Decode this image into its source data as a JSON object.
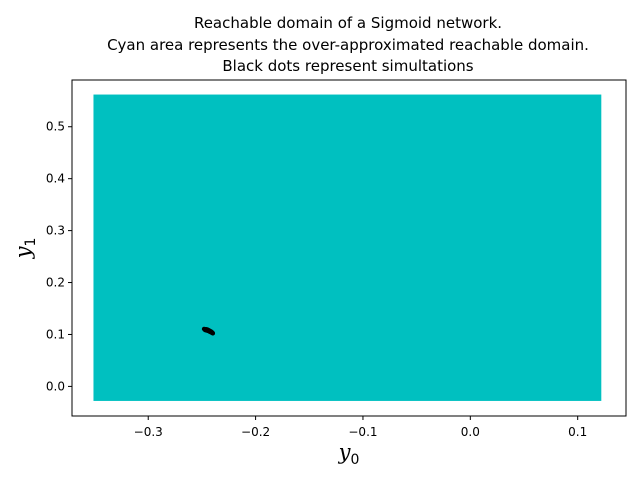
{
  "chart_data": {
    "type": "scatter",
    "title_lines": [
      "Reachable domain of a Sigmoid network.",
      "Cyan area represents the over-approximated reachable domain.",
      "Black dots represent simultations"
    ],
    "xlabel": {
      "base": "y",
      "sub": "0"
    },
    "ylabel": {
      "base": "y",
      "sub": "1"
    },
    "xlim": [
      -0.371,
      0.145
    ],
    "ylim": [
      -0.057,
      0.59
    ],
    "xticks": [
      {
        "value": -0.3,
        "label": "−0.3"
      },
      {
        "value": -0.2,
        "label": "−0.2"
      },
      {
        "value": -0.1,
        "label": "−0.1"
      },
      {
        "value": 0.0,
        "label": "0.0"
      },
      {
        "value": 0.1,
        "label": "0.1"
      }
    ],
    "yticks": [
      {
        "value": 0.0,
        "label": "0.0"
      },
      {
        "value": 0.1,
        "label": "0.1"
      },
      {
        "value": 0.2,
        "label": "0.2"
      },
      {
        "value": 0.3,
        "label": "0.3"
      },
      {
        "value": 0.4,
        "label": "0.4"
      },
      {
        "value": 0.5,
        "label": "0.5"
      }
    ],
    "grid": false,
    "region": {
      "x": [
        -0.351,
        0.122
      ],
      "y": [
        -0.028,
        0.562
      ],
      "color": "#00c0c0"
    },
    "points_color": "#000000",
    "points": [
      [
        -0.2475,
        0.11
      ],
      [
        -0.2465,
        0.1095
      ],
      [
        -0.2455,
        0.109
      ],
      [
        -0.2448,
        0.1083
      ],
      [
        -0.244,
        0.1075
      ],
      [
        -0.2432,
        0.1068
      ],
      [
        -0.2425,
        0.106
      ],
      [
        -0.2418,
        0.1052
      ],
      [
        -0.2412,
        0.1045
      ],
      [
        -0.2406,
        0.1037
      ],
      [
        -0.24,
        0.103
      ],
      [
        -0.2398,
        0.1022
      ],
      [
        -0.247,
        0.1085
      ],
      [
        -0.2458,
        0.1078
      ],
      [
        -0.2446,
        0.107
      ],
      [
        -0.2436,
        0.1062
      ],
      [
        -0.2426,
        0.1052
      ],
      [
        -0.2416,
        0.1042
      ],
      [
        -0.2408,
        0.1034
      ],
      [
        -0.2402,
        0.1026
      ],
      [
        -0.248,
        0.1106
      ],
      [
        -0.2462,
        0.1102
      ],
      [
        -0.245,
        0.1097
      ],
      [
        -0.2438,
        0.1085
      ],
      [
        -0.2428,
        0.1072
      ],
      [
        -0.242,
        0.1064
      ],
      [
        -0.241,
        0.105
      ],
      [
        -0.2404,
        0.104
      ]
    ]
  }
}
